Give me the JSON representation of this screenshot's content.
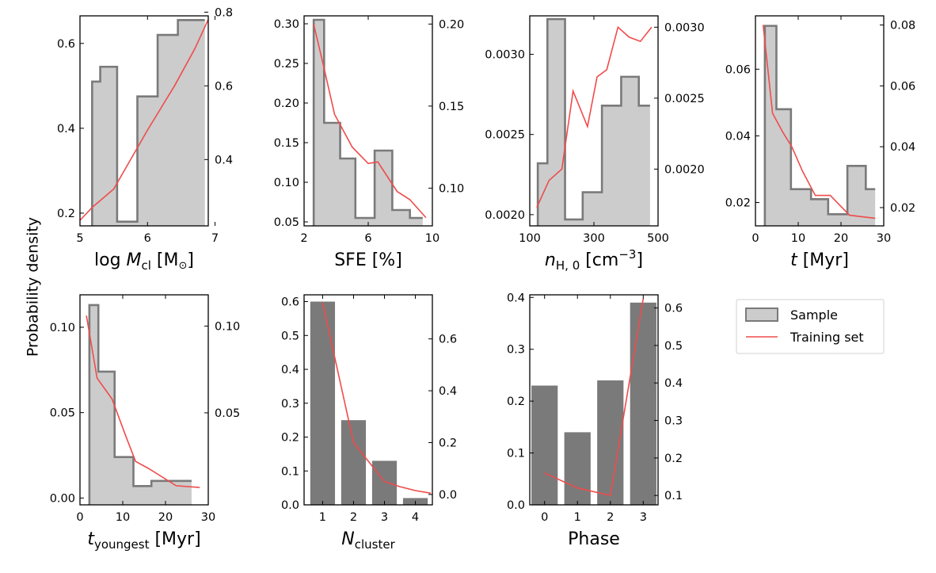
{
  "figure": {
    "ylabel": "Probability density",
    "legend": {
      "sample_label": "Sample",
      "training_label": "Training set",
      "position": "right of lower row"
    }
  },
  "colors": {
    "sample_fill": "#cccccc",
    "sample_edge": "#7a7a7a",
    "bar": "#7a7a7a",
    "training": "#f04b4b"
  },
  "chart_data": [
    {
      "type": "histogram-step",
      "id": "mcl",
      "xlabel": {
        "base": "log ",
        "italic": "M",
        "sub": "cl",
        "after": " [M",
        "sym": "⊙",
        "close": "]"
      },
      "xlim": [
        5.0,
        6.9
      ],
      "xticks": [
        5,
        6,
        7
      ],
      "xtick_labels": [
        "5",
        "6",
        "7"
      ],
      "ylim": [
        0.17,
        0.665
      ],
      "yticks": [
        0.2,
        0.4,
        0.6
      ],
      "ytick_labels": [
        "0.2",
        "0.4",
        "0.6"
      ],
      "y2lim": [
        0.22,
        0.79
      ],
      "y2ticks": [
        0.4,
        0.6,
        0.8
      ],
      "y2tick_labels": [
        "0.4",
        "0.6",
        "0.8"
      ],
      "bins": [
        5.18,
        5.3,
        5.55,
        5.85,
        6.15,
        6.45,
        6.85
      ],
      "densities": [
        0.51,
        0.545,
        0.18,
        0.475,
        0.62,
        0.655
      ],
      "training": {
        "x": [
          5.0,
          5.18,
          5.5,
          6.0,
          6.4,
          6.7,
          6.9
        ],
        "y": [
          0.235,
          0.27,
          0.32,
          0.48,
          0.6,
          0.7,
          0.78
        ]
      }
    },
    {
      "type": "histogram-step",
      "id": "sfe",
      "xlabel": {
        "base": "SFE [%]"
      },
      "xlim": [
        2.0,
        10.0
      ],
      "xticks": [
        2,
        6,
        10
      ],
      "xtick_labels": [
        "2",
        "6",
        "10"
      ],
      "ylim": [
        0.045,
        0.31
      ],
      "yticks": [
        0.05,
        0.1,
        0.15,
        0.2,
        0.25,
        0.3
      ],
      "ytick_labels": [
        "0.05",
        "0.10",
        "0.15",
        "0.20",
        "0.25",
        "0.30"
      ],
      "y2lim": [
        0.077,
        0.205
      ],
      "y2ticks": [
        0.1,
        0.15,
        0.2
      ],
      "y2tick_labels": [
        "0.10",
        "0.15",
        "0.20"
      ],
      "bins": [
        2.6,
        3.25,
        4.25,
        5.2,
        6.4,
        7.5,
        8.6,
        9.4
      ],
      "densities": [
        0.305,
        0.175,
        0.13,
        0.055,
        0.14,
        0.065,
        0.055
      ],
      "training": {
        "x": [
          2.6,
          3.2,
          3.9,
          5.0,
          6.0,
          6.6,
          7.8,
          8.6,
          9.6
        ],
        "y": [
          0.2,
          0.175,
          0.145,
          0.125,
          0.115,
          0.116,
          0.098,
          0.093,
          0.082
        ]
      }
    },
    {
      "type": "histogram-step",
      "id": "nh",
      "xlabel": {
        "italic": "n",
        "sub": "H, 0",
        "after": " [cm",
        "sup": "−3",
        "close": "]"
      },
      "xlim": [
        100,
        500
      ],
      "xticks": [
        100,
        300,
        500
      ],
      "xtick_labels": [
        "100",
        "300",
        "500"
      ],
      "ylim": [
        0.00193,
        0.00324
      ],
      "yticks": [
        0.002,
        0.0025,
        0.003
      ],
      "ytick_labels": [
        "0.0020",
        "0.0025",
        "0.0030"
      ],
      "y2lim": [
        0.0016,
        0.00308
      ],
      "y2ticks": [
        0.002,
        0.0025,
        0.003
      ],
      "y2tick_labels": [
        "0.0020",
        "0.0025",
        "0.0030"
      ],
      "bins": [
        125,
        155,
        210,
        265,
        325,
        385,
        440,
        475
      ],
      "densities": [
        0.00232,
        0.00322,
        0.00197,
        0.00214,
        0.00268,
        0.00286,
        0.00268
      ],
      "training": {
        "x": [
          122,
          160,
          200,
          235,
          280,
          310,
          340,
          375,
          410,
          445,
          480
        ],
        "y": [
          0.00173,
          0.00192,
          0.002,
          0.00255,
          0.0023,
          0.00265,
          0.0027,
          0.003,
          0.00293,
          0.0029,
          0.003
        ]
      }
    },
    {
      "type": "histogram-step",
      "id": "t",
      "xlabel": {
        "italic": "t",
        "after": " [Myr]"
      },
      "xlim": [
        0,
        30
      ],
      "xticks": [
        0,
        10,
        20,
        30
      ],
      "xtick_labels": [
        "0",
        "10",
        "20",
        "30"
      ],
      "ylim": [
        0.013,
        0.076
      ],
      "yticks": [
        0.02,
        0.04,
        0.06
      ],
      "ytick_labels": [
        "0.02",
        "0.04",
        "0.06"
      ],
      "y2lim": [
        0.014,
        0.083
      ],
      "y2ticks": [
        0.02,
        0.04,
        0.06,
        0.08
      ],
      "y2tick_labels": [
        "0.02",
        "0.04",
        "0.06",
        "0.08"
      ],
      "bins": [
        2.2,
        4.9,
        8.3,
        13.0,
        17.0,
        21.5,
        25.8,
        28.0
      ],
      "densities": [
        0.073,
        0.048,
        0.024,
        0.021,
        0.0165,
        0.031,
        0.024
      ],
      "training": {
        "x": [
          1.8,
          4.0,
          6.3,
          8.5,
          11.0,
          14.0,
          17.5,
          22.0,
          28.0
        ],
        "y": [
          0.08,
          0.051,
          0.045,
          0.04,
          0.032,
          0.024,
          0.024,
          0.0175,
          0.0165
        ]
      }
    },
    {
      "type": "histogram-step",
      "id": "tyoung",
      "xlabel": {
        "italic": "t",
        "sub": "youngest",
        "after": " [Myr]"
      },
      "xlim": [
        0,
        30
      ],
      "xticks": [
        0,
        10,
        20,
        30
      ],
      "xtick_labels": [
        "0",
        "10",
        "20",
        "30"
      ],
      "ylim": [
        -0.004,
        0.119
      ],
      "yticks": [
        0.0,
        0.05,
        0.1
      ],
      "ytick_labels": [
        "0.00",
        "0.05",
        "0.10"
      ],
      "y2lim": [
        -0.003,
        0.118
      ],
      "y2ticks": [
        0.05,
        0.1
      ],
      "y2tick_labels": [
        "0.05",
        "0.10"
      ],
      "bins": [
        2.2,
        4.3,
        8.1,
        12.5,
        16.7,
        26.1
      ],
      "densities": [
        0.113,
        0.074,
        0.024,
        0.007,
        0.01
      ],
      "training": {
        "x": [
          1.5,
          4.0,
          7.5,
          10.5,
          13.0,
          16.0,
          22.5,
          28.0
        ],
        "y": [
          0.106,
          0.07,
          0.058,
          0.038,
          0.022,
          0.018,
          0.008,
          0.007
        ]
      }
    },
    {
      "type": "bar",
      "id": "ncluster",
      "xlabel": {
        "italic": "N",
        "sub": "cluster"
      },
      "xlim": [
        0.4,
        4.55
      ],
      "xticks": [
        1,
        2,
        3,
        4
      ],
      "xtick_labels": [
        "1",
        "2",
        "3",
        "4"
      ],
      "ylim": [
        0.0,
        0.62
      ],
      "yticks": [
        0.0,
        0.1,
        0.2,
        0.3,
        0.4,
        0.5,
        0.6
      ],
      "ytick_labels": [
        "0.0",
        "0.1",
        "0.2",
        "0.3",
        "0.4",
        "0.5",
        "0.6"
      ],
      "y2lim": [
        -0.04,
        0.77
      ],
      "y2ticks": [
        0.0,
        0.2,
        0.4,
        0.6
      ],
      "y2tick_labels": [
        "0.0",
        "0.2",
        "0.4",
        "0.6"
      ],
      "categories": [
        1,
        2,
        3,
        4
      ],
      "values": [
        0.6,
        0.25,
        0.13,
        0.02
      ],
      "bar_width": 0.8,
      "training": {
        "x": [
          1.0,
          2.0,
          3.0,
          3.5,
          4.0,
          4.5
        ],
        "y": [
          0.74,
          0.2,
          0.05,
          0.03,
          0.015,
          0.005
        ]
      }
    },
    {
      "type": "bar",
      "id": "phase",
      "xlabel": {
        "base": "Phase"
      },
      "xlim": [
        -0.45,
        3.45
      ],
      "xticks": [
        0,
        1,
        2,
        3
      ],
      "xtick_labels": [
        "0",
        "1",
        "2",
        "3"
      ],
      "ylim": [
        0.0,
        0.405
      ],
      "yticks": [
        0.0,
        0.1,
        0.2,
        0.3,
        0.4
      ],
      "ytick_labels": [
        "0.0",
        "0.1",
        "0.2",
        "0.3",
        "0.4"
      ],
      "y2lim": [
        0.075,
        0.635
      ],
      "y2ticks": [
        0.1,
        0.2,
        0.3,
        0.4,
        0.5,
        0.6
      ],
      "y2tick_labels": [
        "0.1",
        "0.2",
        "0.3",
        "0.4",
        "0.5",
        "0.6"
      ],
      "categories": [
        0,
        1,
        2,
        3
      ],
      "values": [
        0.23,
        0.14,
        0.24,
        0.39
      ],
      "bar_width": 0.8,
      "training": {
        "x": [
          0,
          1,
          2,
          3
        ],
        "y": [
          0.16,
          0.12,
          0.1,
          0.625
        ]
      }
    }
  ]
}
